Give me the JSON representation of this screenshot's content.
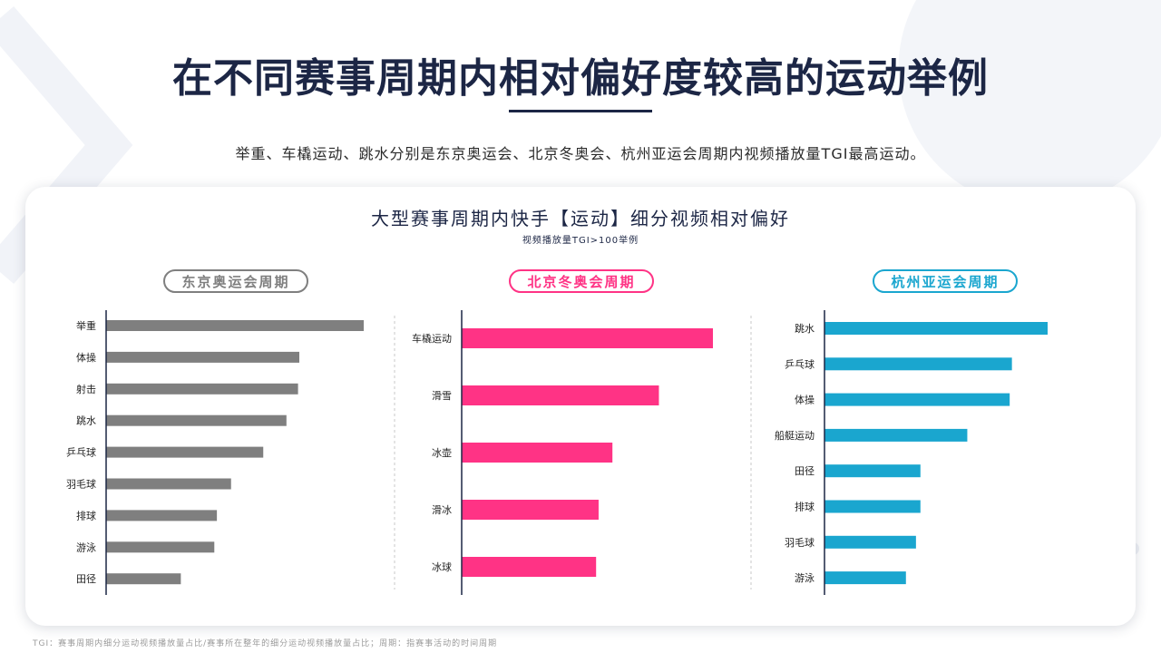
{
  "page": {
    "title": "在不同赛事周期内相对偏好度较高的运动举例",
    "subtitle": "举重、车橇运动、跳水分别是东京奥运会、北京冬奥会、杭州亚运会周期内视频播放量TGI最高运动。",
    "chart_title": "大型赛事周期内快手【运动】细分视频相对偏好",
    "chart_subtitle": "视频播放量TGI>100举例",
    "footnote": "TGI：赛事周期内细分运动视频播放量占比/赛事所在整年的细分运动视频播放量占比；周期：指赛事活动的时间周期"
  },
  "colors": {
    "title": "#1c2645",
    "tokyo": "#7f7f7f",
    "beijing": "#ff3385",
    "hangzhou": "#1aa6cf"
  },
  "chart_data": [
    {
      "type": "bar",
      "orientation": "horizontal",
      "title": "东京奥运会周期",
      "categories": [
        "举重",
        "体操",
        "射击",
        "跳水",
        "乒乓球",
        "羽毛球",
        "排球",
        "游泳",
        "田径"
      ],
      "values": [
        100,
        75,
        74.5,
        70,
        61,
        48.5,
        43,
        42,
        29
      ],
      "color": "#7f7f7f",
      "xlim": [
        0,
        100
      ]
    },
    {
      "type": "bar",
      "orientation": "horizontal",
      "title": "北京冬奥会周期",
      "categories": [
        "车橇运动",
        "滑雪",
        "冰壶",
        "滑冰",
        "冰球"
      ],
      "values": [
        100,
        78.5,
        60,
        54.5,
        53.5
      ],
      "color": "#ff3385",
      "xlim": [
        0,
        100
      ]
    },
    {
      "type": "bar",
      "orientation": "horizontal",
      "title": "杭州亚运会周期",
      "categories": [
        "跳水",
        "乒乓球",
        "体操",
        "船艇运动",
        "田径",
        "排球",
        "羽毛球",
        "游泳"
      ],
      "values": [
        100,
        84,
        83,
        64,
        43,
        43,
        41,
        36.5
      ],
      "color": "#1aa6cf",
      "xlim": [
        0,
        100
      ]
    }
  ]
}
